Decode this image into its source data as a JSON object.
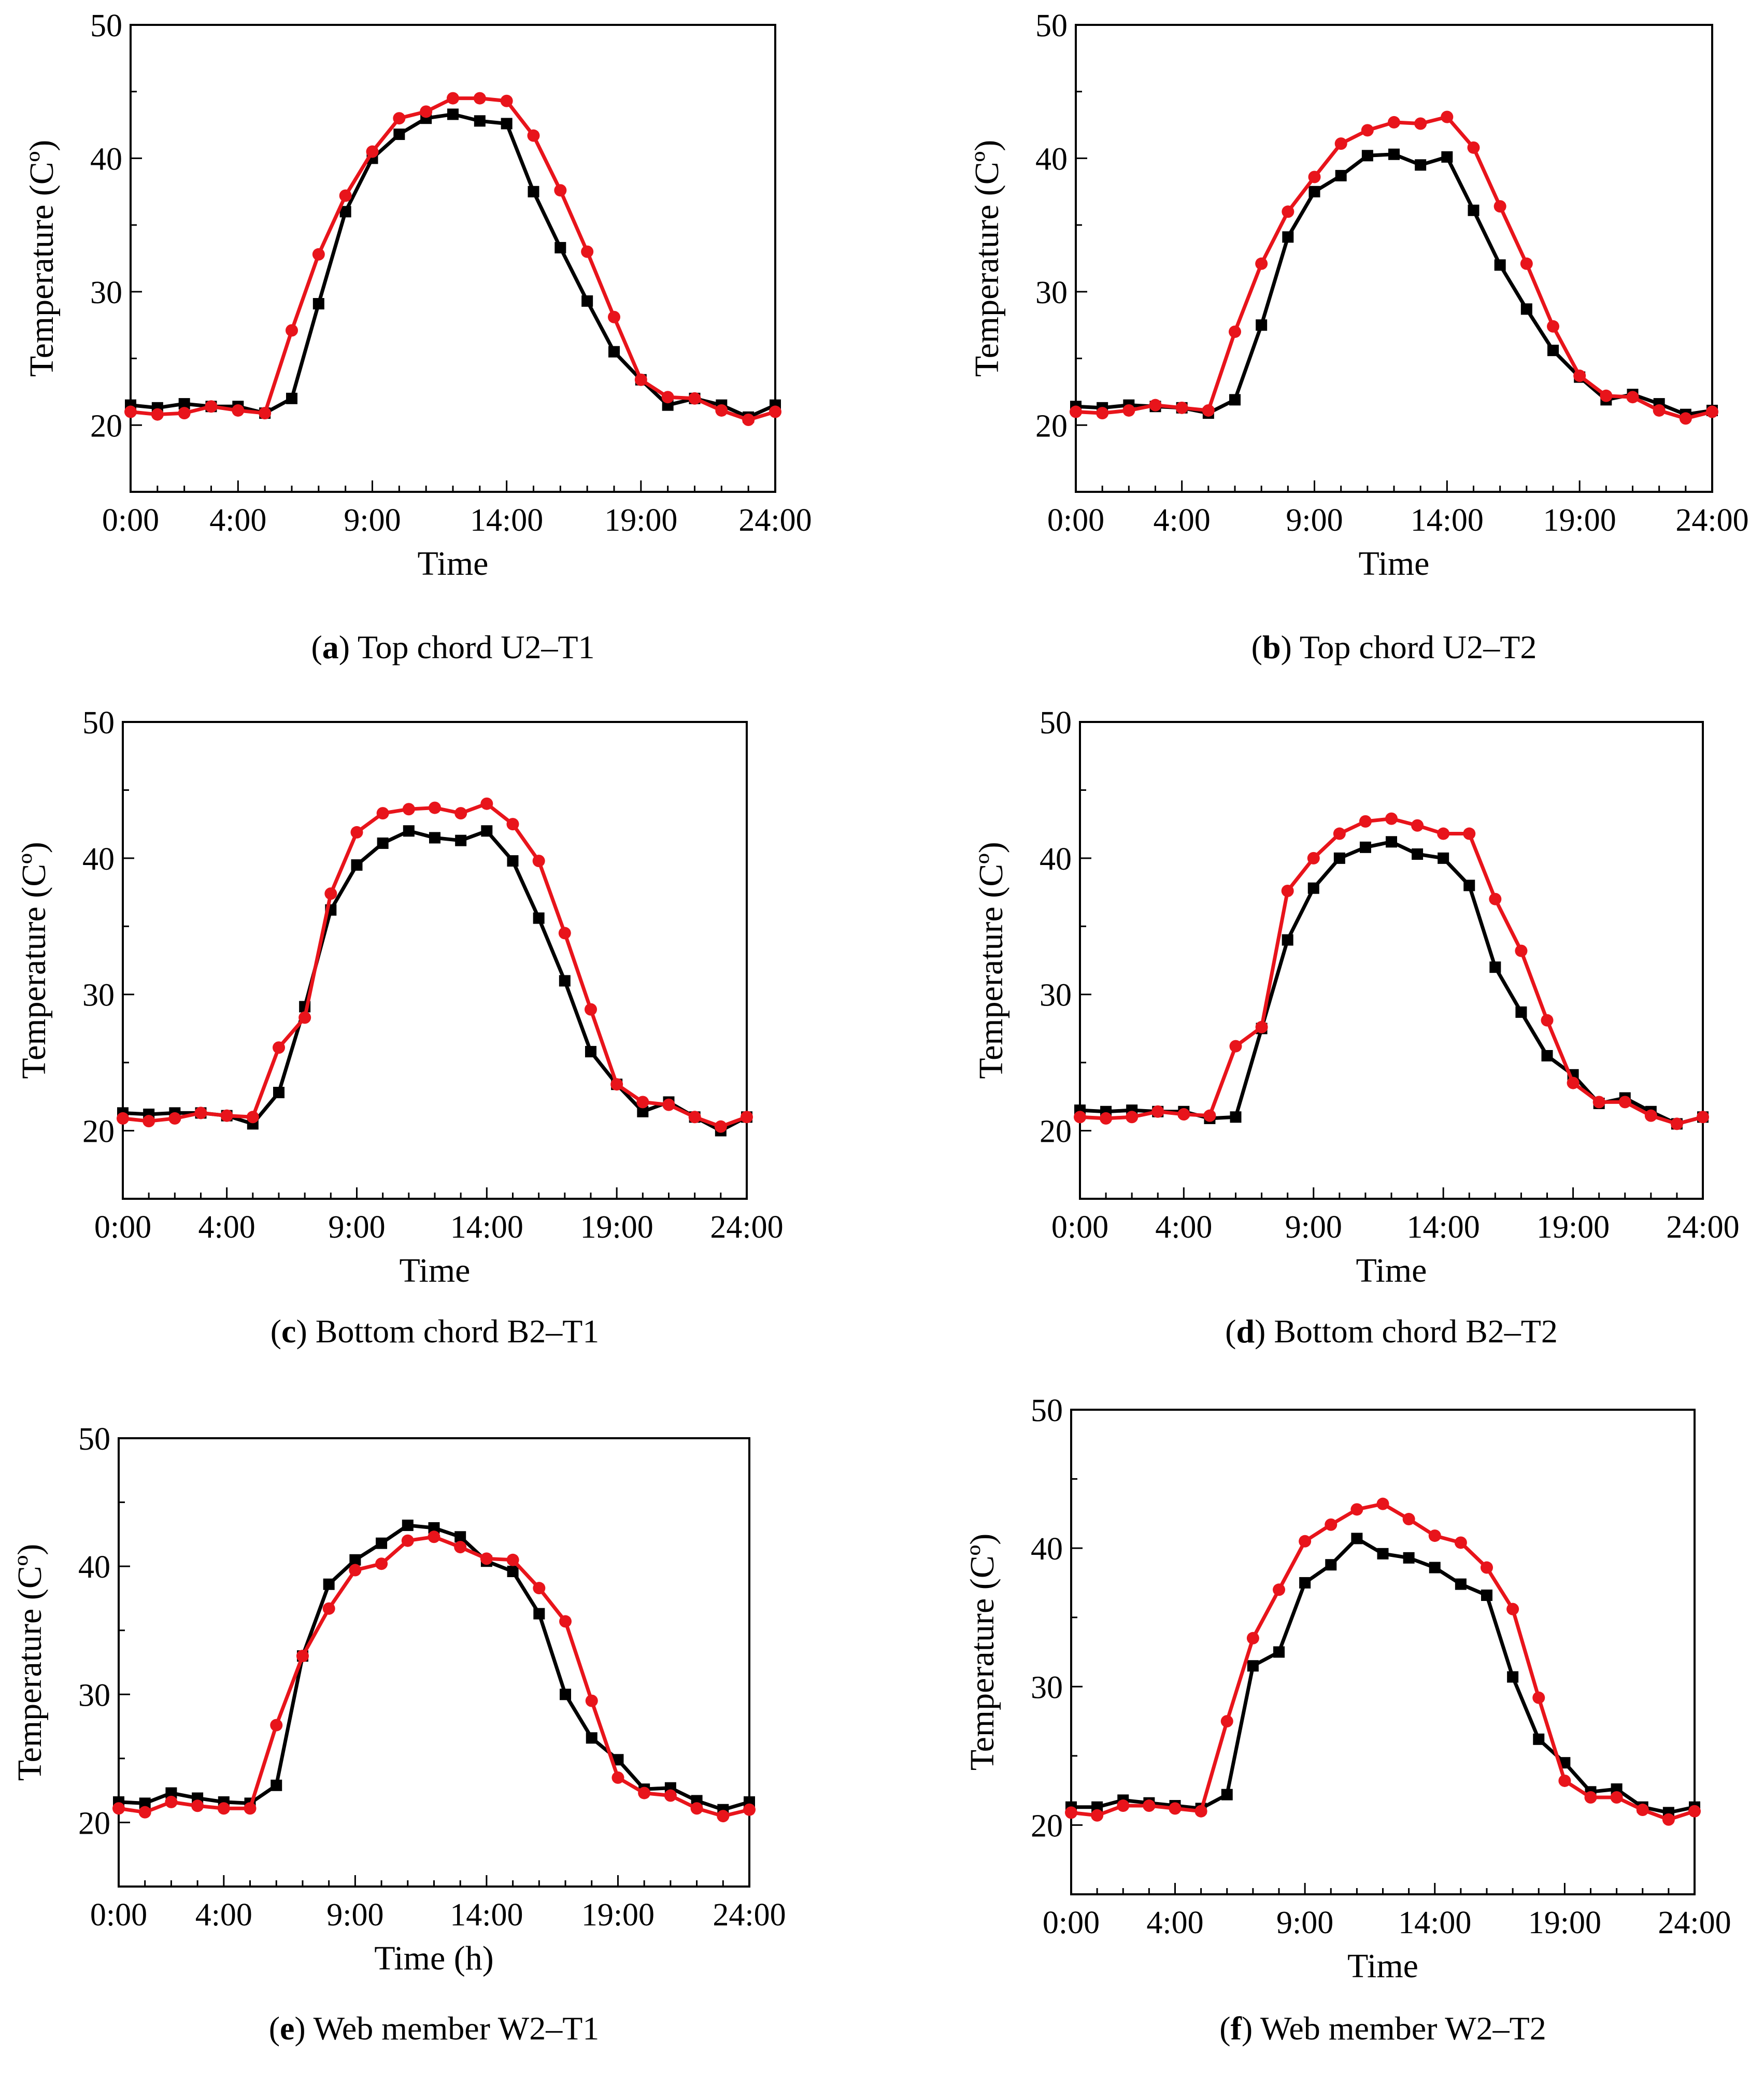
{
  "colors": {
    "series_black": "#000000",
    "series_red": "#e8141b",
    "axes": "#000000",
    "background": "#ffffff"
  },
  "chart_data": [
    {
      "type": "line",
      "panel": "a",
      "caption": {
        "letter": "a",
        "text": "Top chord U2–T1"
      },
      "xlabel": "Time",
      "ylabel": "Temperature (Cº)",
      "xlim": [
        0,
        24
      ],
      "ylim": [
        15,
        50
      ],
      "xticks": [
        "0:00",
        "4:00",
        "9:00",
        "14:00",
        "19:00",
        "24:00"
      ],
      "yticks": [
        "20",
        "30",
        "40",
        "50"
      ],
      "x": [
        0,
        1,
        2,
        3,
        4,
        5,
        6,
        7,
        8,
        9,
        10,
        11,
        12,
        13,
        14,
        15,
        16,
        17,
        18,
        19,
        20,
        21,
        22,
        23,
        24
      ],
      "series": [
        {
          "name": "black (square markers)",
          "values": [
            21.5,
            21.3,
            21.6,
            21.4,
            21.4,
            20.9,
            22.0,
            29.1,
            36.0,
            40.0,
            41.8,
            43.0,
            43.3,
            42.8,
            42.6,
            37.5,
            33.3,
            29.3,
            25.5,
            23.4,
            21.5,
            22.0,
            21.5,
            20.6,
            21.5
          ]
        },
        {
          "name": "red (circle markers)",
          "values": [
            21.0,
            20.8,
            20.9,
            21.4,
            21.1,
            20.9,
            27.1,
            32.8,
            37.2,
            40.5,
            43.0,
            43.5,
            44.5,
            44.5,
            44.3,
            41.7,
            37.6,
            33.0,
            28.1,
            23.4,
            22.1,
            22.0,
            21.1,
            20.4,
            21.0
          ]
        }
      ]
    },
    {
      "type": "line",
      "panel": "b",
      "caption": {
        "letter": "b",
        "text": "Top chord U2–T2"
      },
      "xlabel": "Time",
      "ylabel": "Temperature (Cº)",
      "xlim": [
        0,
        24
      ],
      "ylim": [
        15,
        50
      ],
      "xticks": [
        "0:00",
        "4:00",
        "9:00",
        "14:00",
        "19:00",
        "24:00"
      ],
      "yticks": [
        "20",
        "30",
        "40",
        "50"
      ],
      "x": [
        0,
        1,
        2,
        3,
        4,
        5,
        6,
        7,
        8,
        9,
        10,
        11,
        12,
        13,
        14,
        15,
        16,
        17,
        18,
        19,
        20,
        21,
        22,
        23,
        24
      ],
      "series": [
        {
          "name": "black (square markers)",
          "values": [
            21.4,
            21.3,
            21.5,
            21.4,
            21.3,
            20.9,
            21.9,
            27.5,
            34.1,
            37.5,
            38.7,
            40.2,
            40.3,
            39.5,
            40.1,
            36.1,
            32.0,
            28.7,
            25.6,
            23.6,
            21.9,
            22.3,
            21.6,
            20.8,
            21.1
          ]
        },
        {
          "name": "red (circle markers)",
          "values": [
            21.0,
            20.9,
            21.1,
            21.5,
            21.3,
            21.1,
            27.0,
            32.1,
            36.0,
            38.6,
            41.1,
            42.1,
            42.7,
            42.6,
            43.1,
            40.8,
            36.4,
            32.1,
            27.4,
            23.7,
            22.2,
            22.1,
            21.1,
            20.5,
            21.0
          ]
        }
      ]
    },
    {
      "type": "line",
      "panel": "c",
      "caption": {
        "letter": "c",
        "text": "Bottom chord B2–T1"
      },
      "xlabel": "Time",
      "ylabel": "Temperature (Cº)",
      "xlim": [
        0,
        24
      ],
      "ylim": [
        15,
        50
      ],
      "xticks": [
        "0:00",
        "4:00",
        "9:00",
        "14:00",
        "19:00",
        "24:00"
      ],
      "yticks": [
        "20",
        "30",
        "40",
        "50"
      ],
      "x": [
        0,
        1,
        2,
        3,
        4,
        5,
        6,
        7,
        8,
        9,
        10,
        11,
        12,
        13,
        14,
        15,
        16,
        17,
        18,
        19,
        20,
        21,
        22,
        23,
        24
      ],
      "series": [
        {
          "name": "black (square markers)",
          "values": [
            21.3,
            21.2,
            21.3,
            21.3,
            21.1,
            20.5,
            22.8,
            29.1,
            36.2,
            39.5,
            41.1,
            42.0,
            41.5,
            41.3,
            42.0,
            39.8,
            35.6,
            31.0,
            25.8,
            23.4,
            21.4,
            22.1,
            21.0,
            20.0,
            21.0
          ]
        },
        {
          "name": "red (circle markers)",
          "values": [
            20.9,
            20.7,
            20.9,
            21.3,
            21.1,
            21.0,
            26.1,
            28.3,
            37.4,
            41.9,
            43.3,
            43.6,
            43.7,
            43.3,
            44.0,
            42.5,
            39.8,
            34.5,
            28.9,
            23.4,
            22.1,
            21.9,
            21.0,
            20.3,
            21.0
          ]
        }
      ]
    },
    {
      "type": "line",
      "panel": "d",
      "caption": {
        "letter": "d",
        "text": "Bottom chord B2–T2"
      },
      "xlabel": "Time",
      "ylabel": "Temperature (Cº)",
      "xlim": [
        0,
        24
      ],
      "ylim": [
        15,
        50
      ],
      "xticks": [
        "0:00",
        "4:00",
        "9:00",
        "14:00",
        "19:00",
        "24:00"
      ],
      "yticks": [
        "20",
        "30",
        "40",
        "50"
      ],
      "x": [
        0,
        1,
        2,
        3,
        4,
        5,
        6,
        7,
        8,
        9,
        10,
        11,
        12,
        13,
        14,
        15,
        16,
        17,
        18,
        19,
        20,
        21,
        22,
        23,
        24
      ],
      "series": [
        {
          "name": "black (square markers)",
          "values": [
            21.5,
            21.4,
            21.5,
            21.4,
            21.4,
            20.9,
            21.0,
            27.5,
            34.0,
            37.8,
            40.0,
            40.8,
            41.2,
            40.3,
            40.0,
            38.0,
            32.0,
            28.7,
            25.5,
            24.1,
            22.0,
            22.4,
            21.4,
            20.5,
            21.0
          ]
        },
        {
          "name": "red (circle markers)",
          "values": [
            21.0,
            20.9,
            21.0,
            21.4,
            21.2,
            21.1,
            26.2,
            27.6,
            37.6,
            40.0,
            41.8,
            42.7,
            42.9,
            42.4,
            41.8,
            41.8,
            37.0,
            33.2,
            28.1,
            23.5,
            22.1,
            22.1,
            21.1,
            20.5,
            21.0
          ]
        }
      ]
    },
    {
      "type": "line",
      "panel": "e",
      "caption": {
        "letter": "e",
        "text": "Web member W2–T1"
      },
      "xlabel": "Time (h)",
      "ylabel": "Temperature (Cº)",
      "xlim": [
        0,
        24
      ],
      "ylim": [
        15,
        50
      ],
      "xticks": [
        "0:00",
        "4:00",
        "9:00",
        "14:00",
        "19:00",
        "24:00"
      ],
      "yticks": [
        "20",
        "30",
        "40",
        "50"
      ],
      "x": [
        0,
        1,
        2,
        3,
        4,
        5,
        6,
        7,
        8,
        9,
        10,
        11,
        12,
        13,
        14,
        15,
        16,
        17,
        18,
        19,
        20,
        21,
        22,
        23,
        24
      ],
      "series": [
        {
          "name": "black (square markers)",
          "values": [
            21.6,
            21.5,
            22.3,
            21.9,
            21.6,
            21.5,
            22.9,
            33.0,
            38.6,
            40.5,
            41.8,
            43.2,
            43.0,
            42.3,
            40.4,
            39.6,
            36.3,
            30.0,
            26.6,
            24.9,
            22.6,
            22.7,
            21.7,
            21.0,
            21.6
          ]
        },
        {
          "name": "red (circle markers)",
          "values": [
            21.1,
            20.8,
            21.6,
            21.3,
            21.1,
            21.1,
            27.6,
            33.0,
            36.7,
            39.7,
            40.2,
            42.0,
            42.3,
            41.5,
            40.6,
            40.5,
            38.3,
            35.7,
            29.5,
            23.5,
            22.3,
            22.1,
            21.1,
            20.5,
            21.0
          ]
        }
      ]
    },
    {
      "type": "line",
      "panel": "f",
      "caption": {
        "letter": "f",
        "text": "Web member W2–T2"
      },
      "xlabel": "Time",
      "ylabel": "Temperature (Cº)",
      "xlim": [
        0,
        24
      ],
      "ylim": [
        15,
        50
      ],
      "xticks": [
        "0:00",
        "4:00",
        "9:00",
        "14:00",
        "19:00",
        "24:00"
      ],
      "yticks": [
        "20",
        "30",
        "40",
        "50"
      ],
      "x": [
        0,
        1,
        2,
        3,
        4,
        5,
        6,
        7,
        8,
        9,
        10,
        11,
        12,
        13,
        14,
        15,
        16,
        17,
        18,
        19,
        20,
        21,
        22,
        23,
        24
      ],
      "series": [
        {
          "name": "black (square markers)",
          "values": [
            21.3,
            21.3,
            21.8,
            21.6,
            21.4,
            21.2,
            22.2,
            31.5,
            32.5,
            37.5,
            38.8,
            40.7,
            39.6,
            39.3,
            38.6,
            37.4,
            36.6,
            30.7,
            26.2,
            24.5,
            22.4,
            22.6,
            21.3,
            20.9,
            21.3
          ]
        },
        {
          "name": "red (circle markers)",
          "values": [
            20.9,
            20.7,
            21.4,
            21.4,
            21.2,
            21.0,
            27.5,
            33.5,
            37.0,
            40.5,
            41.7,
            42.8,
            43.2,
            42.1,
            40.9,
            40.4,
            38.6,
            35.6,
            29.2,
            23.2,
            22.0,
            22.0,
            21.1,
            20.4,
            21.0
          ]
        }
      ]
    }
  ]
}
